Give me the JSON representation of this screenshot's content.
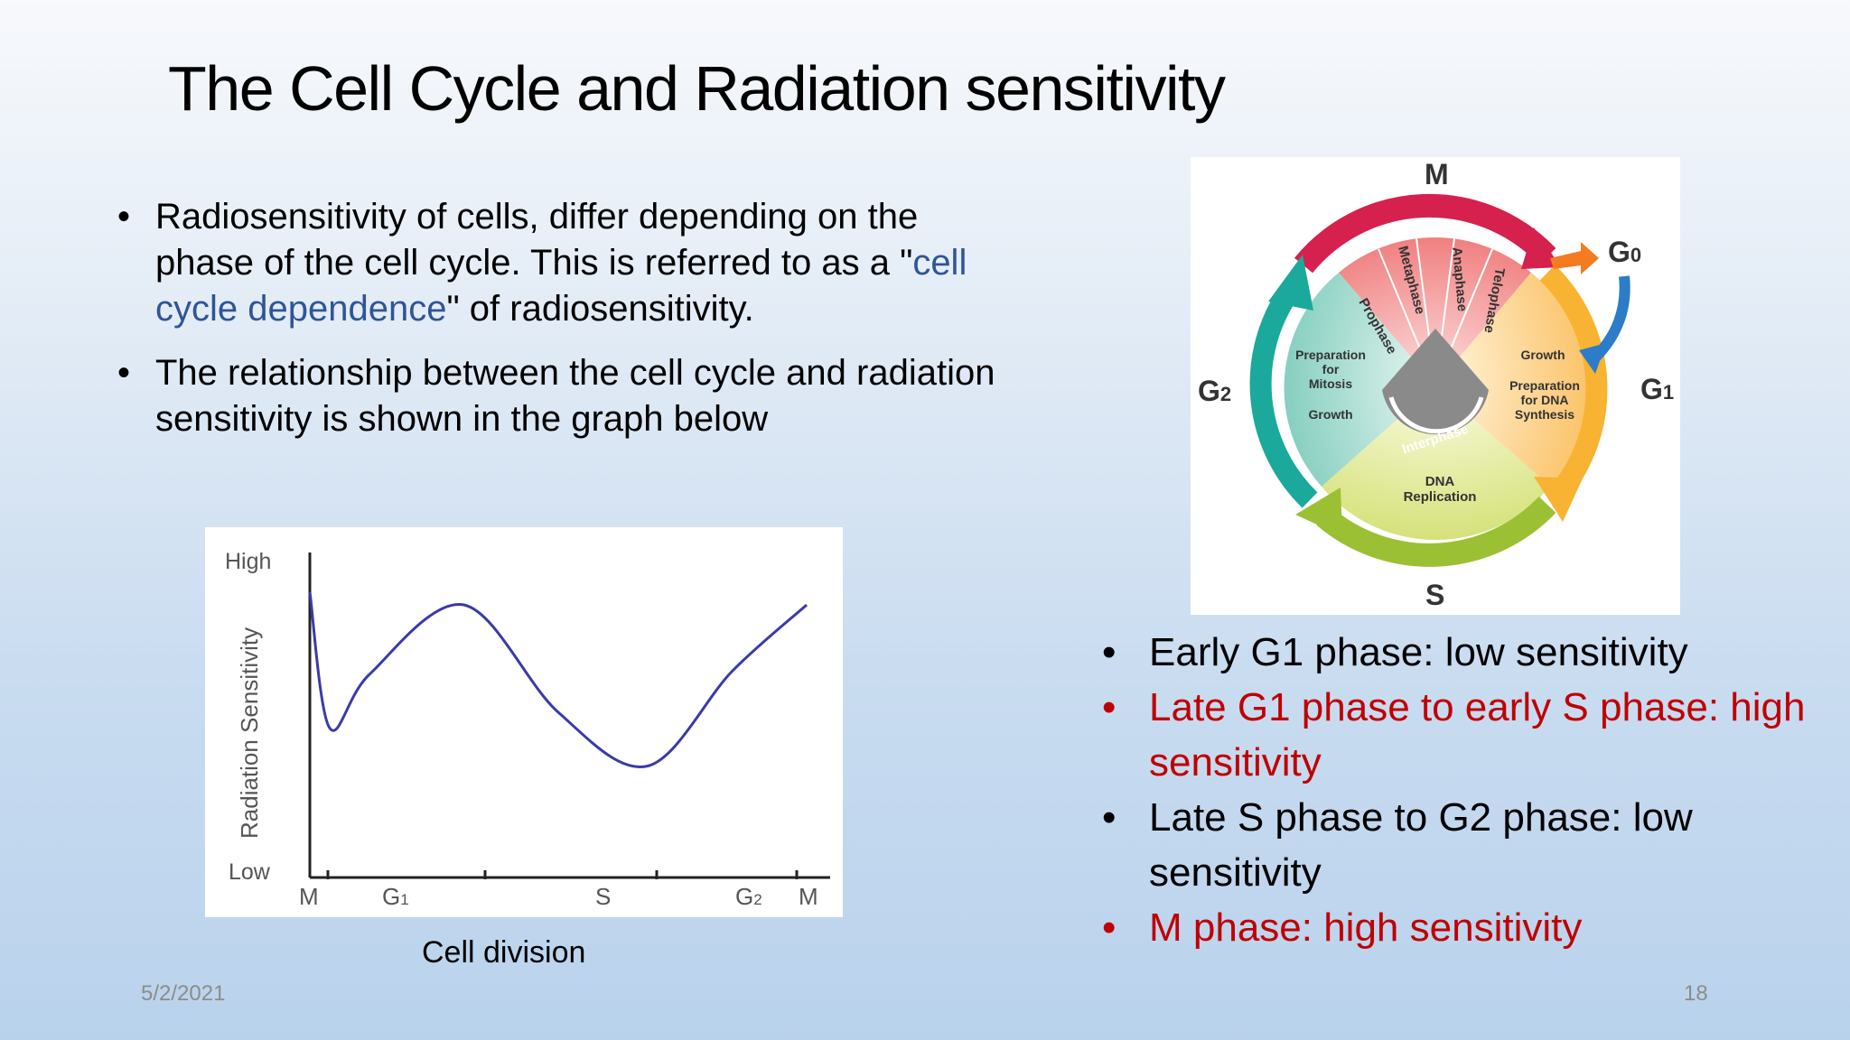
{
  "title": "The Cell Cycle and Radiation sensitivity",
  "bullets_left": [
    {
      "before": "Radiosensitivity of cells, differ depending on the phase of the cell cycle. This is referred to as a \"",
      "highlight": "cell cycle dependence",
      "after": "\" of radiosensitivity."
    },
    {
      "text": "The relationship between the cell cycle and radiation sensitivity is shown in the graph below"
    }
  ],
  "graph": {
    "ylabel": "Radiation Sensitivity",
    "y_high": "High",
    "y_low": "Low",
    "x_ticks": [
      "M",
      "G1",
      "S",
      "G2",
      "M"
    ],
    "caption": "Cell division"
  },
  "chart_data": {
    "type": "line",
    "title": "",
    "xlabel": "Cell division",
    "ylabel": "Radiation Sensitivity",
    "x_categories": [
      "M",
      "G1",
      "S",
      "G2",
      "M"
    ],
    "y_scale": [
      "Low",
      "High"
    ],
    "series": [
      {
        "color": "#3b3aa8",
        "x": [
          0.0,
          0.04,
          0.12,
          0.31,
          0.5,
          0.68,
          0.85,
          1.0
        ],
        "y": [
          0.88,
          0.45,
          0.62,
          0.84,
          0.5,
          0.33,
          0.63,
          0.84
        ]
      }
    ]
  },
  "cycle_diagram": {
    "phase_m": "M",
    "phase_g0": "G0",
    "phase_g1": "G1",
    "phase_g2": "G2",
    "phase_s": "S",
    "mitosis_stages": [
      "Prophase",
      "Metaphase",
      "Anaphase",
      "Telophase"
    ],
    "g2_labels": [
      "Preparation",
      "for",
      "Mitosis",
      "Growth"
    ],
    "g1_labels": [
      "Growth",
      "Preparation",
      "for DNA",
      "Synthesis"
    ],
    "s_labels": [
      "DNA",
      "Replication"
    ],
    "interphase": "Interphase"
  },
  "bullets_right": [
    {
      "text": "Early G1 phase: low sensitivity",
      "red": false
    },
    {
      "text": "Late G1 phase to early S phase: high sensitivity",
      "red": true
    },
    {
      "text": "Late S phase to G2 phase: low sensitivity",
      "red": false
    },
    {
      "text": "M phase: high sensitivity",
      "red": true
    }
  ],
  "footer": {
    "date": "5/2/2021",
    "page": "18"
  }
}
